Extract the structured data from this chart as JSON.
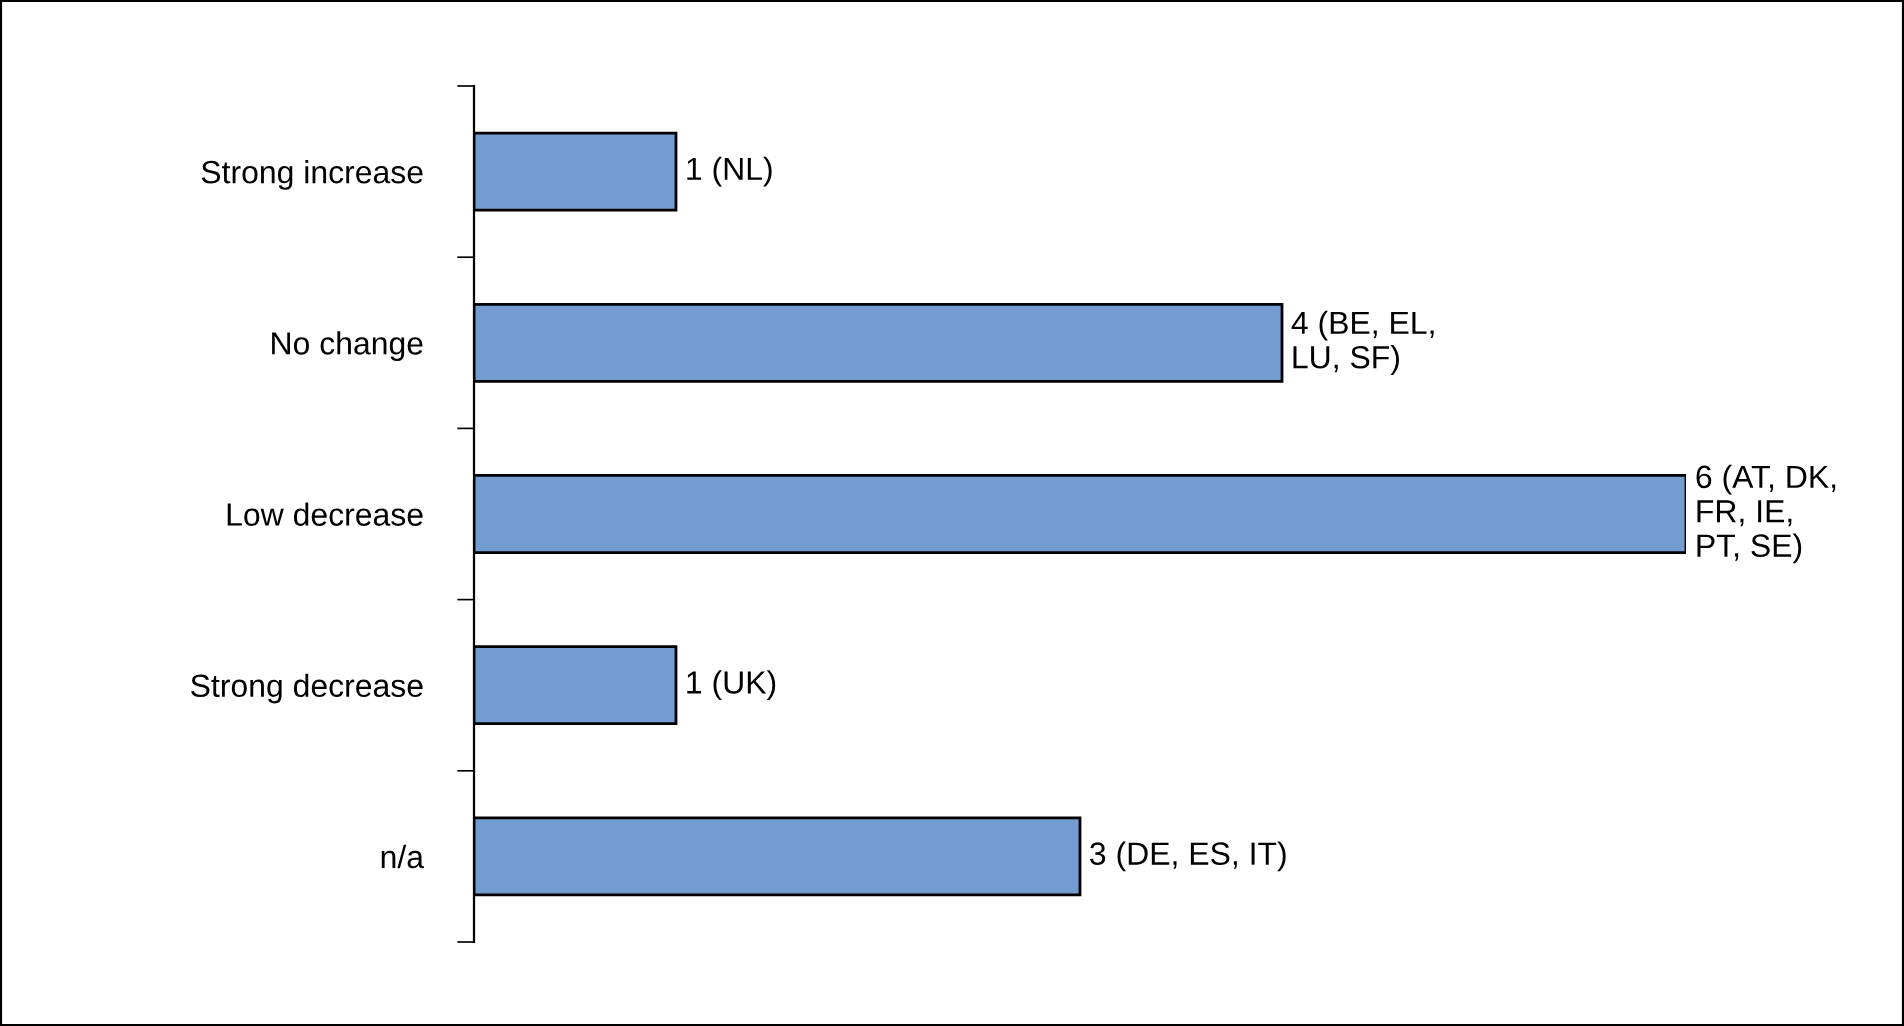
{
  "chart_data": {
    "type": "bar",
    "orientation": "horizontal",
    "categories": [
      "Strong increase",
      "No change",
      "Low decrease",
      "Strong decrease",
      "n/a"
    ],
    "values": [
      1,
      4,
      6,
      1,
      3
    ],
    "color": "#739cd0",
    "value_labels": [
      "1 (NL)",
      "4 (BE, EL,\nLU, SF)",
      "6 (AT, DK,\nFR, IE,\nPT, SE)",
      "1 (UK)",
      "3 (DE, ES, IT)"
    ],
    "grid": false,
    "legend": false
  }
}
